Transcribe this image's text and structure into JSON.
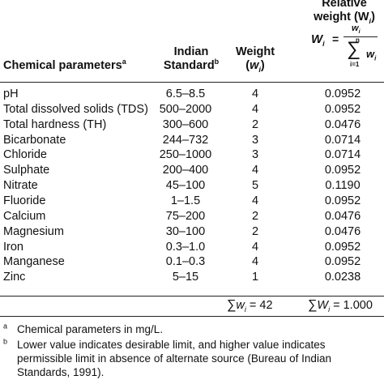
{
  "header": {
    "param_label": "Chemical parameters",
    "param_mark": "a",
    "standard_line1": "Indian",
    "standard_line2": "Standard",
    "standard_mark": "b",
    "weight_line1": "Weight",
    "weight_symbol": "w",
    "weight_sub": "i",
    "relweight_line1": "Relative",
    "relweight_line2": "weight (W",
    "relweight_sub": "i",
    "formula_lhs": "W",
    "formula_lhs_sub": "i",
    "formula_num": "w",
    "formula_num_sub": "i",
    "formula_n": "n",
    "formula_den": "w",
    "formula_den_sub": "i",
    "formula_from": "i=1"
  },
  "rows": [
    {
      "name": "pH",
      "standard": "6.5–8.5",
      "weight": "4",
      "relative": "0.0952"
    },
    {
      "name": "Total dissolved solids (TDS)",
      "standard": "500–2000",
      "weight": "4",
      "relative": "0.0952"
    },
    {
      "name": "Total hardness (TH)",
      "standard": "300–600",
      "weight": "2",
      "relative": "0.0476"
    },
    {
      "name": "Bicarbonate",
      "standard": "244–732",
      "weight": "3",
      "relative": "0.0714"
    },
    {
      "name": "Chloride",
      "standard": "250–1000",
      "weight": "3",
      "relative": "0.0714"
    },
    {
      "name": "Sulphate",
      "standard": "200–400",
      "weight": "4",
      "relative": "0.0952"
    },
    {
      "name": "Nitrate",
      "standard": "45–100",
      "weight": "5",
      "relative": "0.1190"
    },
    {
      "name": "Fluoride",
      "standard": "1–1.5",
      "weight": "4",
      "relative": "0.0952"
    },
    {
      "name": "Calcium",
      "standard": "75–200",
      "weight": "2",
      "relative": "0.0476"
    },
    {
      "name": "Magnesium",
      "standard": "30–100",
      "weight": "2",
      "relative": "0.0476"
    },
    {
      "name": "Iron",
      "standard": "0.3–1.0",
      "weight": "4",
      "relative": "0.0952"
    },
    {
      "name": "Manganese",
      "standard": "0.1–0.3",
      "weight": "4",
      "relative": "0.0952"
    },
    {
      "name": "Zinc",
      "standard": "5–15",
      "weight": "1",
      "relative": "0.0238"
    }
  ],
  "totals": {
    "weight_sum_symbol": "w",
    "weight_sum_sub": "i",
    "weight_sum_value": "= 42",
    "relative_sum_symbol": "W",
    "relative_sum_sub": "i",
    "relative_sum_value": "= 1.000"
  },
  "footnotes": [
    {
      "mark": "a",
      "text": "Chemical parameters in mg/L."
    },
    {
      "mark": "b",
      "text": "Lower value indicates desirable limit, and higher value indicates permissible limit in absence of alternate source (Bureau of Indian Standards, 1991)."
    }
  ]
}
